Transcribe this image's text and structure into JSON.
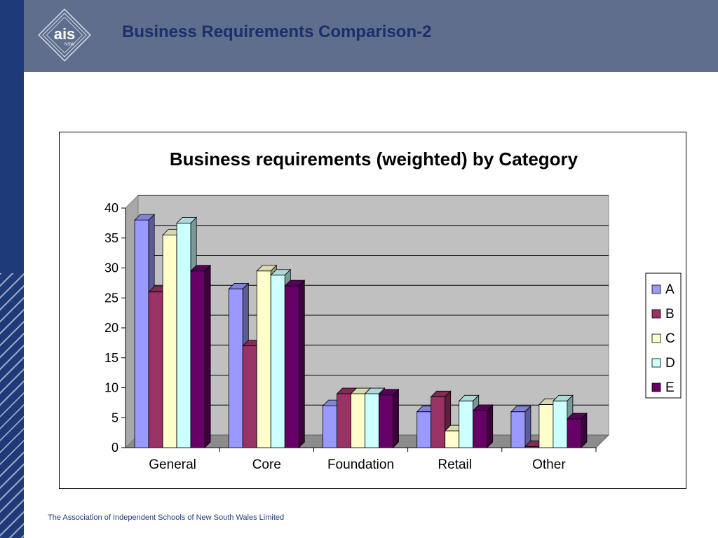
{
  "slide": {
    "title": "Business Requirements Comparison-2",
    "footer": "The Association of Independent Schools of New South Wales Limited",
    "logo_text": "ais",
    "logo_subtext": "NSW"
  },
  "colors": {
    "header_bg": "#5e6e8c",
    "left_bar": "#1f3a78",
    "title_text": "#1c2e6b",
    "plot_area": "#c0c0c0"
  },
  "chart_data": {
    "type": "bar",
    "title": "Business requirements (weighted) by Category",
    "xlabel": "",
    "ylabel": "",
    "categories": [
      "General",
      "Core",
      "Foundation",
      "Retail",
      "Other"
    ],
    "ylim": [
      0,
      40
    ],
    "yticks": [
      0,
      5,
      10,
      15,
      20,
      25,
      30,
      35,
      40
    ],
    "grid": true,
    "legend_position": "right",
    "series": [
      {
        "name": "A",
        "color": "#9999ff",
        "values": [
          38,
          26.5,
          7,
          6,
          6
        ]
      },
      {
        "name": "B",
        "color": "#993366",
        "values": [
          26,
          17,
          9,
          8.5,
          0.2
        ]
      },
      {
        "name": "C",
        "color": "#ffffcc",
        "values": [
          35.5,
          29.5,
          9,
          2.8,
          7.2
        ]
      },
      {
        "name": "D",
        "color": "#ccffff",
        "values": [
          37.5,
          28.8,
          9,
          7.8,
          7.8
        ]
      },
      {
        "name": "E",
        "color": "#660066",
        "values": [
          29.5,
          27,
          8.8,
          6.2,
          4.8
        ]
      }
    ]
  }
}
